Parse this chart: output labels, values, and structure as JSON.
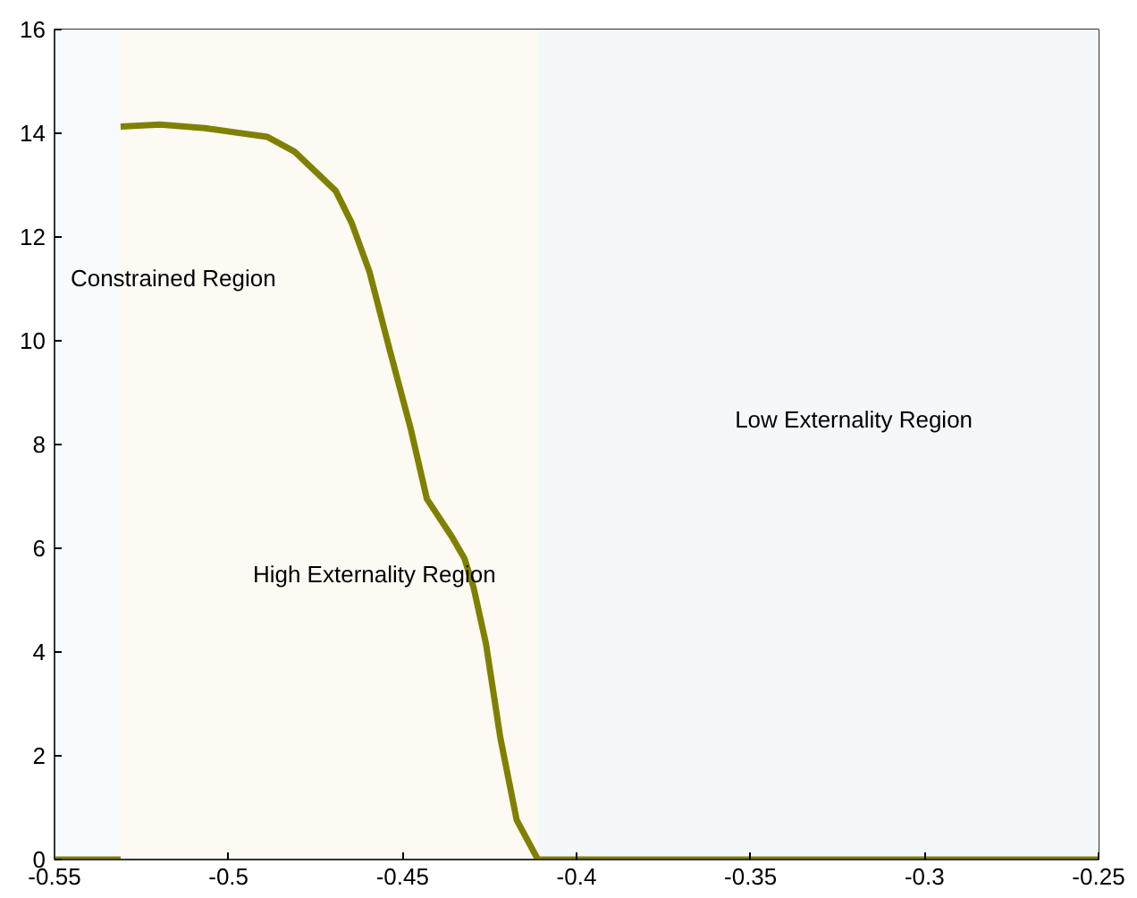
{
  "chart_data": {
    "type": "line",
    "series": [
      {
        "color": "#808000",
        "x": [
          -0.55,
          -0.531
        ],
        "values": [
          0,
          0
        ]
      },
      {
        "color": "#808000",
        "x": [
          -0.531,
          -0.5197,
          -0.5068,
          -0.4888,
          -0.4811,
          -0.4692,
          -0.4646,
          -0.4595,
          -0.4538,
          -0.4476,
          -0.443,
          -0.4358,
          -0.4322,
          -0.4296,
          -0.426,
          -0.4219,
          -0.4172,
          -0.4111,
          -0.25
        ],
        "values": [
          14.13,
          14.17,
          14.1,
          13.93,
          13.65,
          12.89,
          12.27,
          11.33,
          9.85,
          8.29,
          6.95,
          6.22,
          5.8,
          5.25,
          4.15,
          2.35,
          0.76,
          0,
          0
        ]
      }
    ],
    "xlim": [
      -0.55,
      -0.25
    ],
    "ylim": [
      0,
      16
    ],
    "xticks": [
      -0.55,
      -0.5,
      -0.45,
      -0.4,
      -0.35,
      -0.3,
      -0.25
    ],
    "yticks": [
      0,
      2,
      4,
      6,
      8,
      10,
      12,
      14,
      16
    ],
    "bands": [
      {
        "axis": "x",
        "from": -0.55,
        "to": -0.531,
        "color": "#f8fbfd",
        "label": "Constrained Region"
      },
      {
        "axis": "x",
        "from": -0.531,
        "to": -0.4111,
        "color": "#fdf9f3",
        "label": "High Externality Region"
      },
      {
        "axis": "x",
        "from": -0.4111,
        "to": -0.25,
        "color": "#f5f8fa",
        "label": "Low Externality Region"
      }
    ],
    "line_style": "solid",
    "marker": "none"
  }
}
